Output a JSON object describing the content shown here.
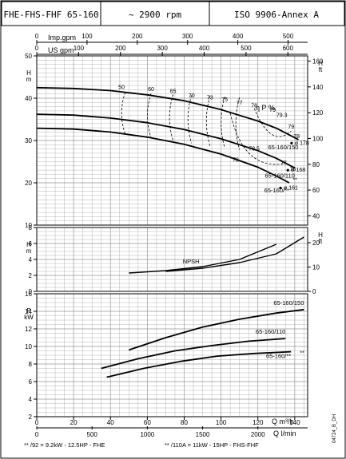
{
  "header": {
    "model": "FHE-FHS-FHF  65-160",
    "speed": "~ 2900  rpm",
    "standard": "ISO  9906-Annex  A"
  },
  "top_axes": {
    "imp_label": "Imp.gpm",
    "imp_ticks": [
      "0",
      "100",
      "200",
      "300",
      "400",
      "500"
    ],
    "us_label": "US  gpm",
    "us_ticks": [
      "0",
      "100",
      "200",
      "300",
      "400",
      "500",
      "600"
    ]
  },
  "bottom_axes": {
    "q_m3h_label": "Q m³/h",
    "q_m3h_ticks": [
      "0",
      "20",
      "40",
      "60",
      "80",
      "100",
      "120",
      "140"
    ],
    "q_lmin_label": "Q l/min",
    "q_lmin_ticks": [
      "0",
      "500",
      "1000",
      "1500",
      "2000"
    ]
  },
  "footnotes": {
    "left": "**  /92 = 9.2kW - 12.5HP - FHE",
    "right": "**  /110A = 11kW - 15HP - FHS-FHF"
  },
  "side_code": "04724_B_DH",
  "chart_data": [
    {
      "type": "line",
      "name": "head",
      "ylabel": "H m",
      "ylabel2": "H ft",
      "ylim": [
        10,
        50
      ],
      "y_ticks": [
        10,
        20,
        30,
        40,
        50
      ],
      "y2_ticks": [
        40,
        60,
        80,
        100,
        120,
        140,
        160
      ],
      "series": [
        {
          "name": "65-160/150",
          "x": [
            0,
            20,
            40,
            60,
            80,
            100,
            120,
            130,
            142
          ],
          "y": [
            42.5,
            42.3,
            41.8,
            40.8,
            39.4,
            37.3,
            34.6,
            32.9,
            30.2
          ]
        },
        {
          "name": "65-160/110",
          "x": [
            0,
            20,
            40,
            60,
            80,
            100,
            120,
            130,
            140
          ],
          "y": [
            36.2,
            36.0,
            35.3,
            34.2,
            32.6,
            30.4,
            27.6,
            25.8,
            23.5
          ]
        },
        {
          "name": "65-160/**",
          "x": [
            0,
            20,
            40,
            60,
            80,
            100,
            120,
            130,
            137
          ],
          "y": [
            32.9,
            32.7,
            32.0,
            30.8,
            29.1,
            26.8,
            23.7,
            21.6,
            20.0
          ]
        }
      ],
      "efficiency_labels": [
        "50",
        "60",
        "65",
        "70",
        "73",
        "75",
        "77",
        "78",
        "79",
        "79.3",
        "79",
        "78",
        "78.5",
        "78",
        "77",
        "75"
      ],
      "efficiency_symbol": "η P %",
      "impeller_diameters": [
        "ø 178",
        "ø 168",
        "ø 161"
      ]
    },
    {
      "type": "line",
      "name": "npsh",
      "ylabel": "H m",
      "ylabel2": "H ft",
      "ylim": [
        0,
        8
      ],
      "y_ticks": [
        0,
        2,
        4,
        6,
        8
      ],
      "y2_ticks": [
        0,
        10,
        20
      ],
      "series": [
        {
          "name": "NPSH",
          "x": [
            50,
            70,
            90,
            110,
            130
          ],
          "y": [
            2.3,
            2.6,
            3.1,
            4.0,
            5.9
          ]
        },
        {
          "name": "NPSH-large",
          "x": [
            70,
            90,
            110,
            130,
            145
          ],
          "y": [
            2.5,
            2.9,
            3.6,
            4.7,
            6.8
          ]
        }
      ],
      "curve_label": "NPSH"
    },
    {
      "type": "line",
      "name": "power",
      "ylabel": "P kW",
      "ylim": [
        2,
        16
      ],
      "y_ticks": [
        2,
        4,
        6,
        8,
        10,
        12,
        14,
        16
      ],
      "series": [
        {
          "name": "65-160/150",
          "x": [
            50,
            70,
            90,
            110,
            130,
            145
          ],
          "y": [
            9.6,
            11.0,
            12.2,
            13.1,
            13.8,
            14.2
          ]
        },
        {
          "name": "65-160/110",
          "x": [
            35,
            55,
            75,
            95,
            115,
            135
          ],
          "y": [
            7.5,
            8.6,
            9.5,
            10.1,
            10.6,
            10.9
          ]
        },
        {
          "name": "65-160/**",
          "x": [
            38,
            58,
            78,
            98,
            118,
            138
          ],
          "y": [
            6.5,
            7.5,
            8.3,
            8.9,
            9.2,
            9.4
          ]
        }
      ]
    }
  ]
}
